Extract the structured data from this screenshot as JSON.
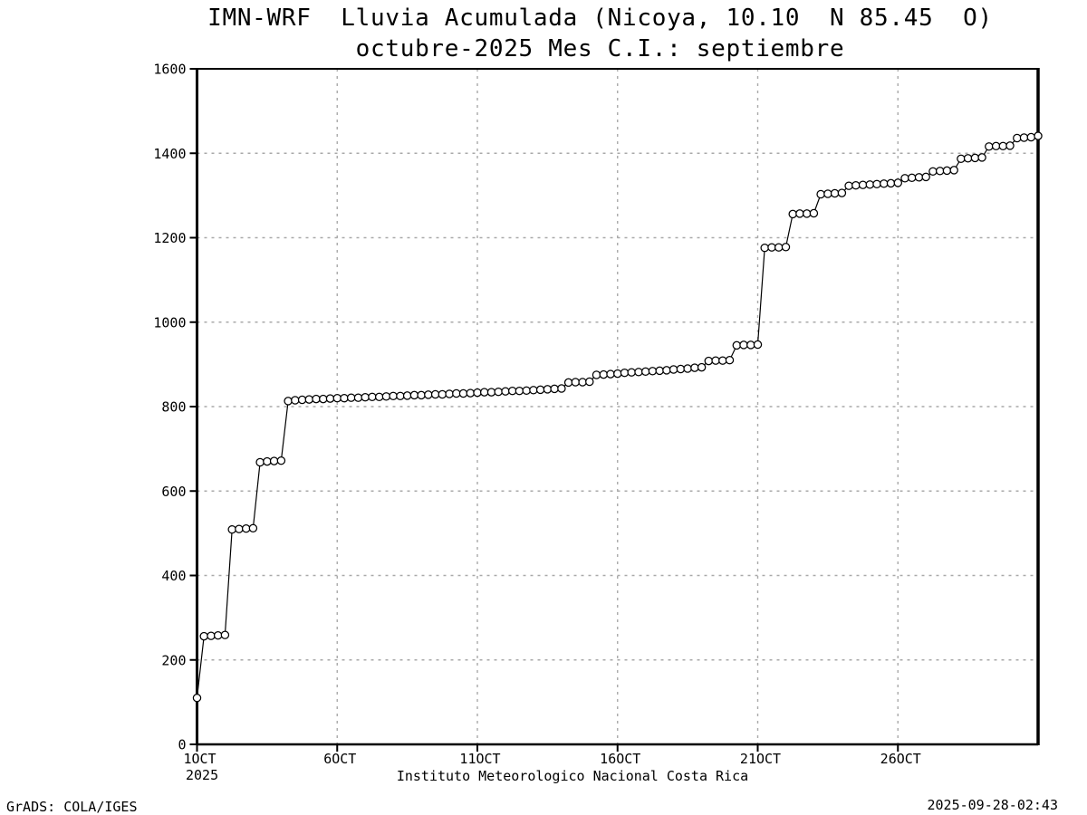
{
  "header": {
    "title_line1": "IMN-WRF  Lluvia Acumulada (Nicoya, 10.10  N 85.45  O)",
    "title_line2": "octubre-2025 Mes C.I.: septiembre"
  },
  "footer": {
    "caption": "Instituto Meteorologico Nacional Costa Rica",
    "credit": "GrADS: COLA/IGES",
    "timestamp": "2025-09-28-02:43"
  },
  "chart_data": {
    "type": "line",
    "title": "IMN-WRF  Lluvia Acumulada (Nicoya, 10.10  N 85.45  O)",
    "subtitle": "octubre-2025 Mes C.I.: septiembre",
    "xlabel": "",
    "ylabel": "",
    "grid": true,
    "legend_position": "none",
    "marker": "open-circle",
    "line_color": "#000000",
    "marker_fill": "#ffffff",
    "grid_color": "#a9a9a9",
    "frame_color": "#000000",
    "ylim": [
      0,
      1600
    ],
    "ytick_interval": 200,
    "ytick_labels": [
      "0",
      "200",
      "400",
      "600",
      "800",
      "1000",
      "1200",
      "1400",
      "1600"
    ],
    "x_axis": {
      "range_days": [
        0,
        30
      ],
      "tick_days": [
        0,
        5,
        10,
        15,
        20,
        25
      ],
      "tick_labels": [
        "1OCT",
        "6OCT",
        "11OCT",
        "16OCT",
        "21OCT",
        "26OCT"
      ],
      "year_label": "2025"
    },
    "series": [
      {
        "name": "lluvia-acumulada-mm",
        "start_day": 0,
        "step_days": 0.25,
        "values": [
          110,
          256,
          257,
          258,
          259,
          509,
          510,
          511,
          512,
          668,
          670,
          671,
          672,
          813,
          815,
          816,
          817,
          818,
          818,
          819,
          820,
          820,
          821,
          821,
          822,
          823,
          823,
          824,
          825,
          825,
          826,
          827,
          827,
          828,
          829,
          829,
          830,
          831,
          831,
          832,
          833,
          834,
          834,
          835,
          836,
          837,
          837,
          838,
          839,
          840,
          841,
          842,
          843,
          857,
          858,
          858,
          859,
          875,
          876,
          877,
          878,
          880,
          881,
          882,
          883,
          884,
          885,
          886,
          888,
          889,
          890,
          892,
          893,
          908,
          909,
          909,
          910,
          945,
          946,
          946,
          947,
          1176,
          1177,
          1177,
          1178,
          1256,
          1257,
          1257,
          1258,
          1303,
          1304,
          1305,
          1306,
          1323,
          1324,
          1325,
          1326,
          1327,
          1328,
          1329,
          1330,
          1341,
          1342,
          1343,
          1344,
          1357,
          1358,
          1359,
          1360,
          1387,
          1388,
          1389,
          1390,
          1416,
          1417,
          1417,
          1418,
          1436,
          1437,
          1438,
          1441
        ]
      }
    ]
  }
}
